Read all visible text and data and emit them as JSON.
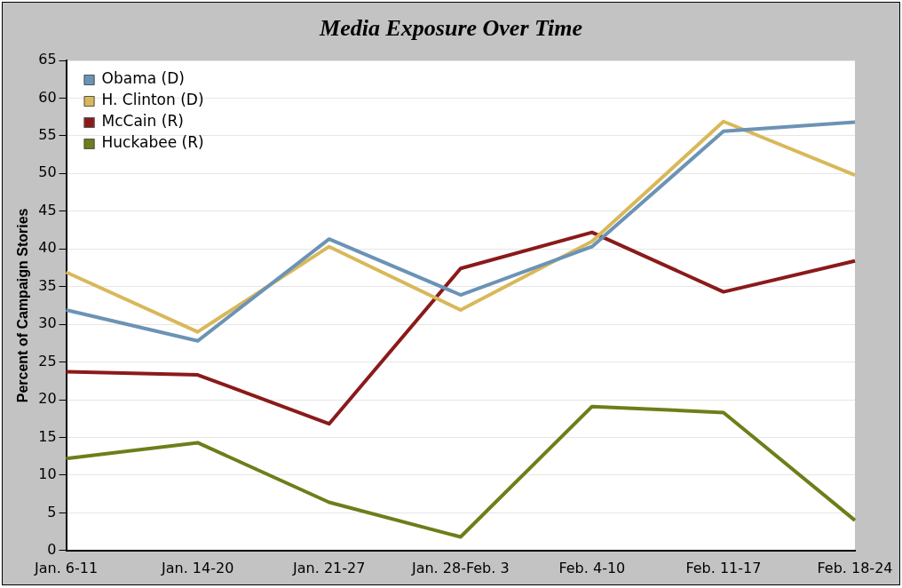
{
  "chart_data": {
    "type": "line",
    "title": "Media Exposure Over Time",
    "ylabel": "Percent of Campaign Stories",
    "categories": [
      "Jan. 6-11",
      "Jan. 14-20",
      "Jan. 21-27",
      "Jan. 28-Feb. 3",
      "Feb. 4-10",
      "Feb. 11-17",
      "Feb. 18-24"
    ],
    "series": [
      {
        "name": "Obama (D)",
        "color": "#6b93b5",
        "values": [
          31.9,
          27.8,
          41.3,
          33.9,
          40.3,
          55.6,
          56.8
        ]
      },
      {
        "name": "H. Clinton (D)",
        "color": "#d9b85a",
        "values": [
          36.9,
          29.0,
          40.3,
          31.9,
          41.0,
          56.9,
          49.8
        ]
      },
      {
        "name": "McCain (R)",
        "color": "#8b1a1a",
        "values": [
          23.7,
          23.3,
          16.8,
          37.4,
          42.2,
          34.3,
          38.4
        ]
      },
      {
        "name": "Huckabee (R)",
        "color": "#6b7f1a",
        "values": [
          12.2,
          14.3,
          6.4,
          1.8,
          19.1,
          18.3,
          4.0
        ]
      }
    ],
    "ylim": [
      0,
      65
    ],
    "yticks": [
      0,
      5,
      10,
      15,
      20,
      25,
      30,
      35,
      40,
      45,
      50,
      55,
      60,
      65
    ],
    "grid": "y",
    "legend": "top left",
    "marker": "none",
    "line_style": "solid"
  }
}
